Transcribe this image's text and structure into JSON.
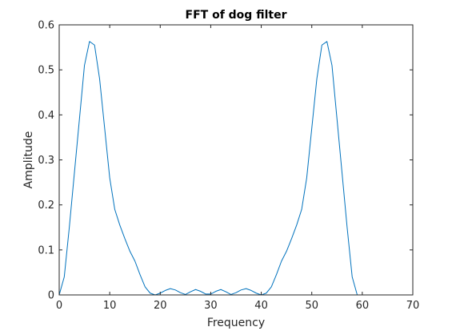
{
  "chart_data": {
    "type": "line",
    "title": "FFT of dog filter",
    "xlabel": "Frequency",
    "ylabel": "Amplitude",
    "xlim": [
      0,
      70
    ],
    "ylim": [
      0,
      0.6
    ],
    "xticks": [
      0,
      10,
      20,
      30,
      40,
      50,
      60,
      70
    ],
    "yticks": [
      0,
      0.1,
      0.2,
      0.3,
      0.4,
      0.5,
      0.6
    ],
    "xtick_labels": [
      "0",
      "10",
      "20",
      "30",
      "40",
      "50",
      "60",
      "70"
    ],
    "ytick_labels": [
      "0",
      "0.1",
      "0.2",
      "0.3",
      "0.4",
      "0.5",
      "0.6"
    ],
    "grid": false,
    "series": [
      {
        "color": "#0072bd",
        "x": [
          0,
          1,
          2,
          3,
          4,
          5,
          6,
          7,
          8,
          9,
          10,
          11,
          12,
          13,
          14,
          15,
          16,
          17,
          18,
          19,
          20,
          21,
          22,
          23,
          24,
          25,
          26,
          27,
          28,
          29,
          30,
          31,
          32,
          33,
          34,
          35,
          36,
          37,
          38,
          39,
          40,
          41,
          42,
          43,
          44,
          45,
          46,
          47,
          48,
          49,
          50,
          51,
          52,
          53,
          54,
          55,
          56,
          57,
          58,
          59,
          60,
          61,
          62,
          63
        ],
        "y": [
          0.0,
          0.04,
          0.15,
          0.27,
          0.39,
          0.51,
          0.563,
          0.555,
          0.48,
          0.37,
          0.26,
          0.19,
          0.155,
          0.125,
          0.097,
          0.075,
          0.045,
          0.018,
          0.004,
          0.0,
          0.004,
          0.01,
          0.014,
          0.011,
          0.005,
          0.001,
          0.007,
          0.012,
          0.008,
          0.002,
          0.002,
          0.008,
          0.012,
          0.007,
          0.001,
          0.005,
          0.011,
          0.014,
          0.01,
          0.004,
          0.0,
          0.004,
          0.018,
          0.045,
          0.075,
          0.097,
          0.125,
          0.155,
          0.19,
          0.26,
          0.37,
          0.48,
          0.555,
          0.563,
          0.51,
          0.39,
          0.27,
          0.15,
          0.04,
          0.0,
          0.0,
          0.0,
          0.0,
          0.0
        ]
      }
    ]
  }
}
